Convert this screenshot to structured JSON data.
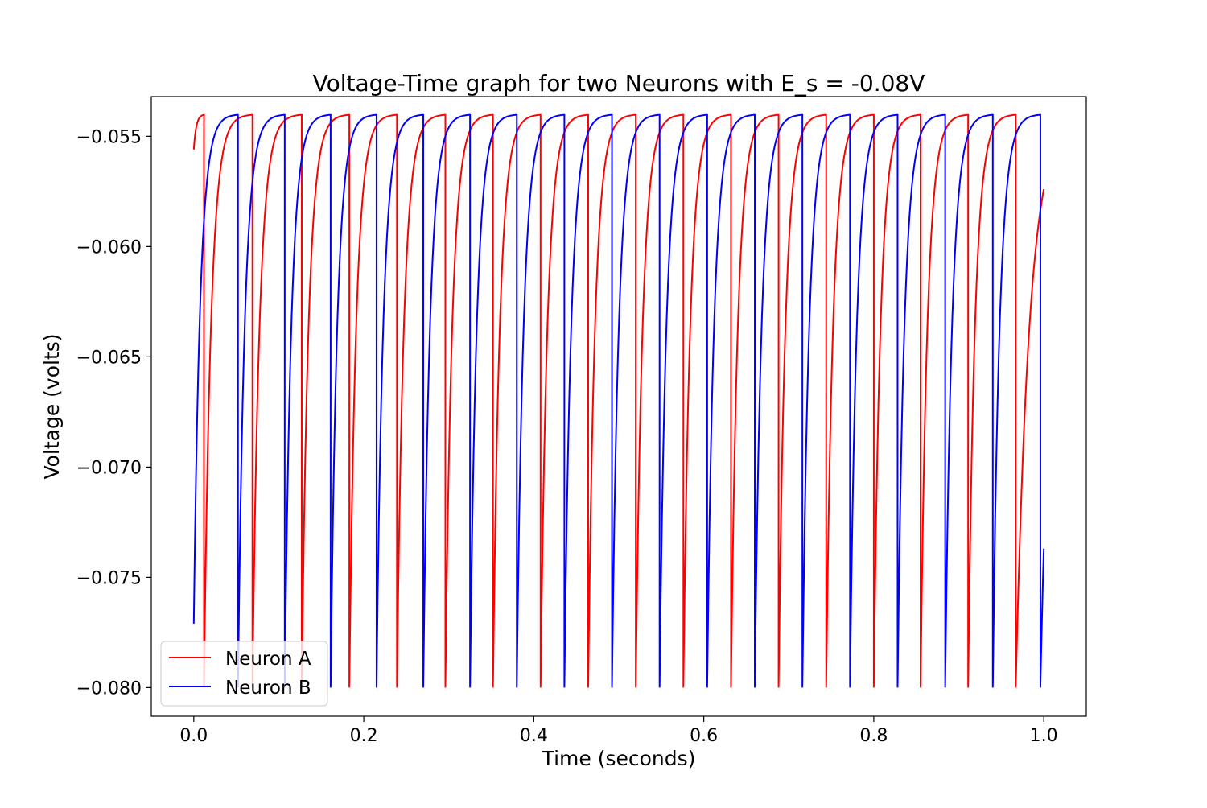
{
  "chart_data": {
    "type": "line",
    "title": "Voltage-Time graph for two Neurons with E_s = -0.08V",
    "xlabel": "Time (seconds)",
    "ylabel": "Voltage (volts)",
    "xlim": [
      -0.05,
      1.05
    ],
    "ylim": [
      -0.0813,
      -0.0532
    ],
    "xticks": [
      0.0,
      0.2,
      0.4,
      0.6,
      0.8,
      1.0
    ],
    "xtick_labels": [
      "0.0",
      "0.2",
      "0.4",
      "0.6",
      "0.8",
      "1.0"
    ],
    "yticks": [
      -0.055,
      -0.06,
      -0.065,
      -0.07,
      -0.075,
      -0.08
    ],
    "ytick_labels": [
      "−0.055",
      "−0.060",
      "−0.065",
      "−0.070",
      "−0.075",
      "−0.080"
    ],
    "grid": false,
    "legend_position": "lower-left",
    "v_reset": -0.08,
    "v_threshold": -0.054,
    "series": [
      {
        "name": "Neuron A",
        "color": "#ff0000",
        "start_value": -0.0556,
        "end_value": -0.0574,
        "spike_times": [
          0.012,
          0.069,
          0.127,
          0.183,
          0.239,
          0.296,
          0.352,
          0.408,
          0.464,
          0.52,
          0.576,
          0.632,
          0.688,
          0.744,
          0.8,
          0.855,
          0.911,
          0.967
        ]
      },
      {
        "name": "Neuron B",
        "color": "#0000ff",
        "start_value": -0.0771,
        "end_value": -0.0737,
        "spike_times": [
          0.052,
          0.107,
          0.161,
          0.215,
          0.27,
          0.325,
          0.38,
          0.436,
          0.492,
          0.548,
          0.604,
          0.66,
          0.716,
          0.772,
          0.828,
          0.884,
          0.94,
          0.996
        ]
      }
    ]
  }
}
